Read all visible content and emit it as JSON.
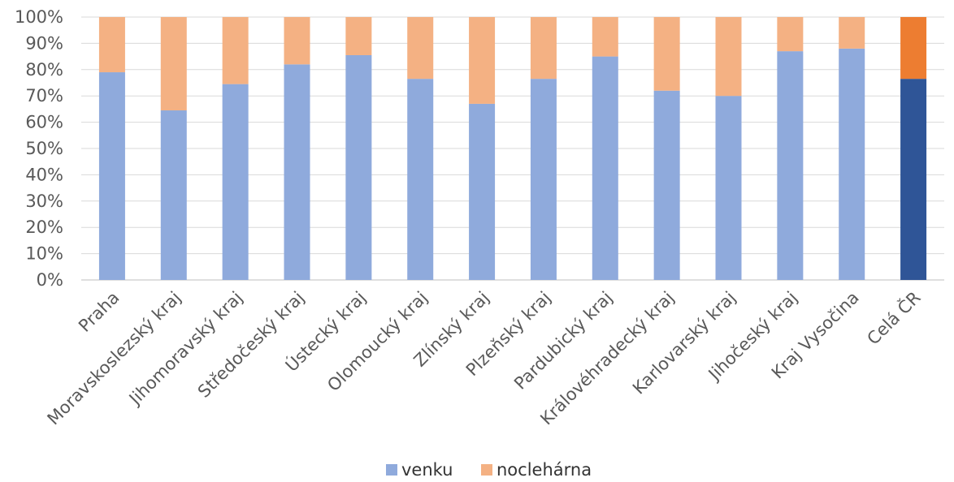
{
  "chart_data": {
    "type": "bar",
    "stacked": true,
    "percent_stacked": true,
    "categories": [
      "Praha",
      "Moravskoslezský kraj",
      "Jihomoravský kraj",
      "Středočeský kraj",
      "Ústecký kraj",
      "Olomoucký kraj",
      "Zlínský kraj",
      "Plzeňský kraj",
      "Pardubický kraj",
      "Královéhradecký kraj",
      "Karlovarský kraj",
      "Jihočeský kraj",
      "Kraj Vysočina",
      "Celá ČR"
    ],
    "series": [
      {
        "name": "venku",
        "values": [
          79,
          64.5,
          74.5,
          82,
          85.5,
          76.5,
          67,
          76.5,
          85,
          72,
          70,
          87,
          88,
          76.5
        ],
        "color": "#8faadc"
      },
      {
        "name": "noclehárna",
        "values": [
          21,
          35.5,
          25.5,
          18,
          14.5,
          23.5,
          33,
          23.5,
          15,
          28,
          30,
          13,
          12,
          23.5
        ],
        "color": "#f4b183"
      }
    ],
    "highlight": {
      "category": "Celá ČR",
      "colors": [
        "#2f5597",
        "#ed7d31"
      ]
    },
    "ylim": [
      0,
      100
    ],
    "yticks": [
      "0%",
      "10%",
      "20%",
      "30%",
      "40%",
      "50%",
      "60%",
      "70%",
      "80%",
      "90%",
      "100%"
    ],
    "grid": true,
    "legend_position": "bottom",
    "title": "",
    "xlabel": "",
    "ylabel": ""
  }
}
